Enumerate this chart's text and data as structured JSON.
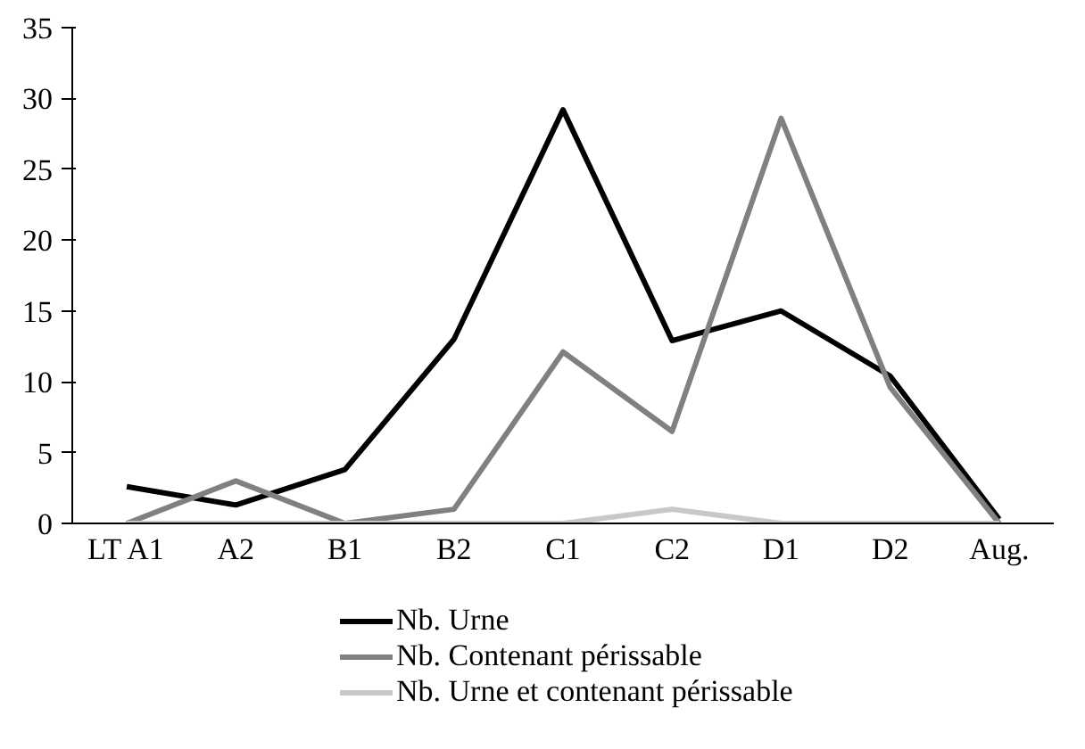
{
  "chart_data": {
    "type": "line",
    "categories": [
      "LT A1",
      "A2",
      "B1",
      "B2",
      "C1",
      "C2",
      "D1",
      "D2",
      "Aug."
    ],
    "series": [
      {
        "name": "Nb. Urne",
        "color": "#000000",
        "values": [
          2.6,
          1.3,
          3.8,
          13,
          29.2,
          12.9,
          15,
          10.4,
          0.3
        ]
      },
      {
        "name": "Nb. Contenant périssable",
        "color": "#808080",
        "values": [
          0,
          3,
          0,
          1,
          12.1,
          6.5,
          28.6,
          9.6,
          0
        ]
      },
      {
        "name": "Nb. Urne et contenant périssable",
        "color": "#c8c8c8",
        "values": [
          0,
          0,
          0,
          0,
          0,
          1,
          0,
          0,
          0
        ]
      }
    ],
    "ylim": [
      0,
      35
    ],
    "yticks": [
      0,
      5,
      10,
      15,
      20,
      25,
      30,
      35
    ],
    "grid": false,
    "legend": "bottom",
    "marker": "none",
    "line_style": "solid"
  }
}
